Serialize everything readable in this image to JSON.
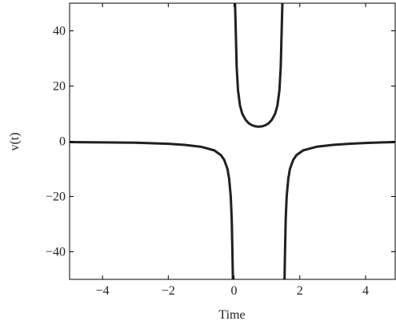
{
  "chart_data": {
    "type": "line",
    "xlabel": "Time",
    "ylabel": "v(t)",
    "xlim": [
      -5,
      4.9
    ],
    "ylim": [
      -50,
      50
    ],
    "x_ticks": [
      -4,
      -2,
      0,
      2,
      4
    ],
    "y_ticks": [
      -40,
      -20,
      0,
      20,
      40
    ],
    "x_tick_labels": [
      "−4",
      "−2",
      "0",
      "2",
      "4"
    ],
    "y_tick_labels": [
      "−40",
      "−20",
      "0",
      "20",
      "40"
    ],
    "grid": false,
    "legend": "none",
    "series": [
      {
        "color": "#231f20",
        "segments": [
          {
            "x": [
              -5,
              -4,
              -3,
              -2,
              -1.5,
              -1,
              -0.6,
              -0.4,
              -0.3,
              -0.2,
              -0.15,
              -0.1,
              -0.07,
              -0.05,
              -0.035,
              -0.025
            ],
            "y": [
              -0.3,
              -0.4,
              -0.5,
              -0.9,
              -1.3,
              -2.0,
              -3.3,
              -5.0,
              -6.7,
              -10,
              -13.5,
              -20,
              -28.5,
              -40,
              -50,
              -50
            ]
          },
          {
            "x": [
              0.02,
              0.03,
              0.05,
              0.08,
              0.12,
              0.18,
              0.25,
              0.35,
              0.45,
              0.55,
              0.65,
              0.75,
              0.85,
              0.95,
              1.05,
              1.15,
              1.25,
              1.32,
              1.38,
              1.42,
              1.45,
              1.47,
              1.48
            ],
            "y": [
              50,
              50,
              41,
              27,
              18.5,
              13,
              10,
              7.8,
              6.5,
              5.8,
              5.4,
              5.3,
              5.4,
              5.8,
              6.5,
              7.8,
              10,
              13,
              18.5,
              27,
              41,
              50,
              50
            ]
          },
          {
            "x": [
              1.525,
              1.535,
              1.55,
              1.57,
              1.6,
              1.65,
              1.7,
              1.8,
              1.9,
              2.1,
              2.5,
              3.0,
              3.5,
              4.0,
              4.5,
              4.9
            ],
            "y": [
              -50,
              -50,
              -40,
              -28.5,
              -20,
              -13.5,
              -10,
              -6.7,
              -5.0,
              -3.3,
              -2.0,
              -1.3,
              -0.9,
              -0.6,
              -0.4,
              -0.3
            ]
          }
        ]
      }
    ]
  }
}
